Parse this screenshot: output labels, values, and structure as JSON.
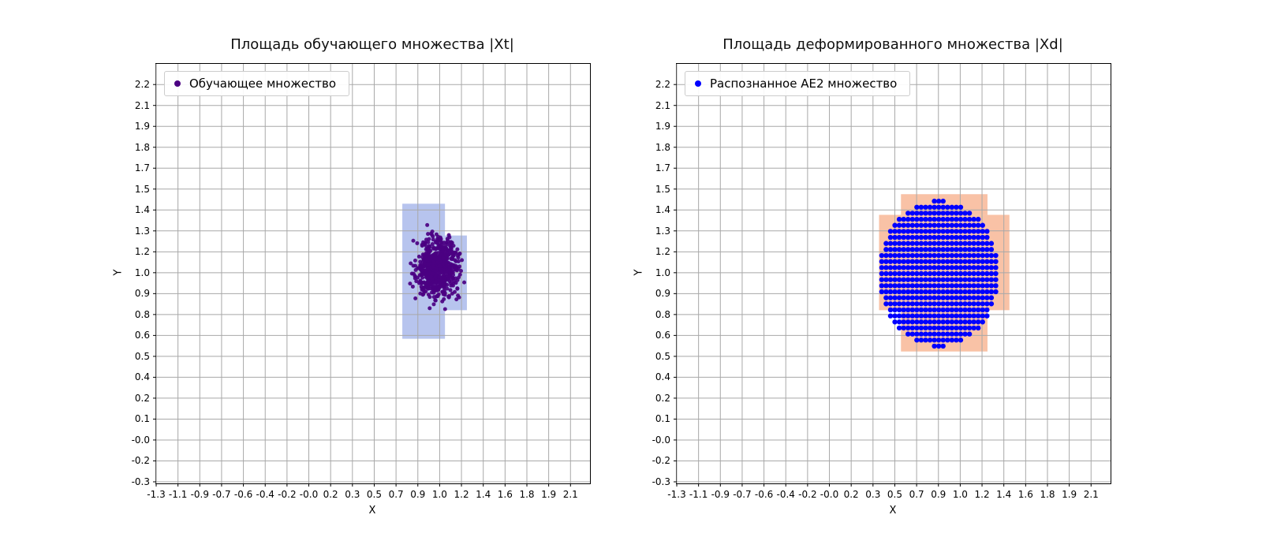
{
  "figure": {
    "background": "#ffffff",
    "grid_color": "#a8a8a8",
    "frame_color": "#000000"
  },
  "chart_data": [
    {
      "type": "scatter",
      "title": "Площадь обучающего множества |Xt|",
      "xlabel": "X",
      "ylabel": "Y",
      "grid": true,
      "legend": {
        "label": "Обучающее множество",
        "position": "upper left",
        "marker_color": "#4b0082"
      },
      "x_tick_labels": [
        "-1.3",
        "-1.1",
        "-0.9",
        "-0.7",
        "-0.6",
        "-0.4",
        "-0.2",
        "-0.0",
        "0.2",
        "0.3",
        "0.5",
        "0.7",
        "0.9",
        "1.0",
        "1.2",
        "1.4",
        "1.6",
        "1.8",
        "1.9",
        "2.1"
      ],
      "y_tick_labels": [
        "-0.3",
        "-0.2",
        "-0.0",
        "0.1",
        "0.2",
        "0.4",
        "0.5",
        "0.6",
        "0.8",
        "0.9",
        "1.0",
        "1.2",
        "1.3",
        "1.4",
        "1.5",
        "1.7",
        "1.8",
        "1.9",
        "2.1",
        "2.2"
      ],
      "x_tick_range": [
        -1.3,
        2.1
      ],
      "y_tick_range": [
        -0.3,
        2.2
      ],
      "x_range": [
        -1.3,
        2.26
      ],
      "y_range": [
        -0.31,
        2.33
      ],
      "highlight_regions": {
        "color": "#b7c4ee",
        "cells": [
          {
            "x0": 0.72,
            "x1": 1.07,
            "y0": 0.6,
            "y1": 1.45
          },
          {
            "x0": 1.07,
            "x1": 1.25,
            "y0": 0.78,
            "y1": 1.25
          }
        ]
      },
      "series": [
        {
          "name": "Обучающее множество",
          "distribution": "gaussian_cluster",
          "n": 650,
          "center": [
            1.0,
            1.05
          ],
          "std": [
            0.085,
            0.095
          ],
          "color": "#4b0082",
          "marker_radius_px": 2.5,
          "seed": 11
        }
      ]
    },
    {
      "type": "scatter",
      "title": "Площадь деформированного множества |Xd|",
      "xlabel": "X",
      "ylabel": "Y",
      "grid": true,
      "legend": {
        "label": "Распознанное AE2 множество",
        "position": "upper left",
        "marker_color": "#0000ff"
      },
      "x_tick_labels": [
        "-1.3",
        "-1.1",
        "-0.9",
        "-0.7",
        "-0.6",
        "-0.4",
        "-0.2",
        "-0.0",
        "0.2",
        "0.3",
        "0.5",
        "0.7",
        "0.9",
        "1.0",
        "1.2",
        "1.4",
        "1.6",
        "1.8",
        "1.9",
        "2.1"
      ],
      "y_tick_labels": [
        "-0.3",
        "-0.2",
        "-0.0",
        "0.1",
        "0.2",
        "0.4",
        "0.5",
        "0.6",
        "0.8",
        "0.9",
        "1.0",
        "1.2",
        "1.3",
        "1.4",
        "1.5",
        "1.7",
        "1.8",
        "1.9",
        "2.1",
        "2.2"
      ],
      "x_tick_range": [
        -1.3,
        2.1
      ],
      "y_tick_range": [
        -0.3,
        2.2
      ],
      "x_range": [
        -1.3,
        2.26
      ],
      "y_range": [
        -0.31,
        2.33
      ],
      "highlight_regions": {
        "color": "#f9c2a6",
        "cells": [
          {
            "x0": 0.36,
            "x1": 1.43,
            "y0": 0.78,
            "y1": 1.38
          },
          {
            "x0": 0.54,
            "x1": 1.25,
            "y0": 1.38,
            "y1": 1.51
          },
          {
            "x0": 0.54,
            "x1": 1.25,
            "y0": 0.52,
            "y1": 0.78
          }
        ]
      },
      "series": [
        {
          "name": "Распознанное AE2 множество",
          "distribution": "grid_ellipse",
          "center": [
            0.85,
            1.01
          ],
          "rx": 0.49,
          "ry": 0.46,
          "step_x": 0.036,
          "step_y": 0.038,
          "color": "#0000ff",
          "marker_radius_px": 3.2
        }
      ]
    }
  ],
  "axes_layout": {
    "axes_width": 550,
    "axes_height": 532
  }
}
